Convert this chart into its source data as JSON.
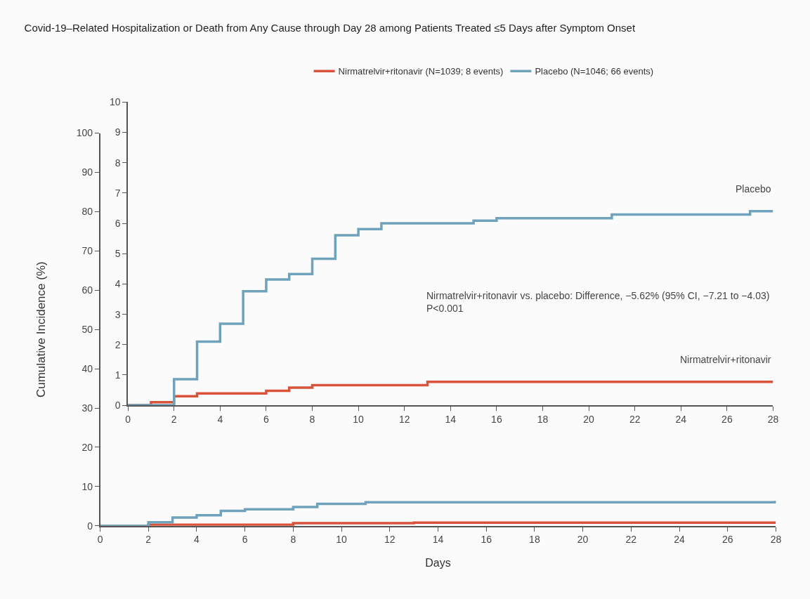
{
  "chart_data": [
    {
      "type": "step",
      "title": "Covid-19–Related Hospitalization or Death from Any Cause through Day 28 among Patients Treated ≤5 Days after Symptom Onset",
      "legend": "top",
      "marker": "none",
      "line_style": "solid",
      "xlim": [
        0,
        28
      ],
      "xticks": [
        0,
        2,
        4,
        6,
        8,
        10,
        12,
        14,
        16,
        18,
        20,
        22,
        24,
        26,
        28
      ],
      "ylim": [
        0,
        10
      ],
      "yticks": [
        0,
        1,
        2,
        3,
        4,
        5,
        6,
        7,
        8,
        9,
        10
      ],
      "series": [
        {
          "name": "Nirmatrelvir+ritonavir (N=1039; 8 events)",
          "color": "#d9533b",
          "x": [
            0,
            1,
            2,
            3,
            6,
            7,
            8,
            13,
            28
          ],
          "values": [
            0,
            0.1,
            0.3,
            0.39,
            0.48,
            0.58,
            0.66,
            0.77,
            0.77
          ]
        },
        {
          "name": "Placebo (N=1046; 66 events)",
          "color": "#6fa3bc",
          "x": [
            0,
            2,
            3,
            4,
            5,
            6,
            7,
            8,
            9,
            10,
            11,
            15,
            16,
            21,
            27,
            28
          ],
          "values": [
            0,
            0.86,
            2.1,
            2.69,
            3.76,
            4.15,
            4.33,
            4.83,
            5.61,
            5.81,
            6.0,
            6.09,
            6.17,
            6.29,
            6.4,
            6.4
          ]
        }
      ],
      "annotations": [
        "Nirmatrelvir+ritonavir",
        "Placebo",
        "Nirmatrelvir+ritonavir vs. placebo: Difference, −5.62% (95% CI, −7.21 to −4.03)\nP<0.001"
      ]
    },
    {
      "type": "step",
      "xlabel": "Days",
      "ylabel": "Cumulative Incidence (%)",
      "legend": false,
      "marker": "none",
      "line_style": "solid",
      "xlim": [
        0,
        28
      ],
      "xticks": [
        0,
        2,
        4,
        6,
        8,
        10,
        12,
        14,
        16,
        18,
        20,
        22,
        24,
        26,
        28
      ],
      "ylim": [
        0,
        100
      ],
      "yticks": [
        0,
        10,
        20,
        30,
        40,
        50,
        60,
        70,
        80,
        90,
        100
      ],
      "series": [
        {
          "color": "#d9533b",
          "x": [
            0,
            2,
            8,
            13,
            28
          ],
          "values": [
            0,
            0.3,
            0.7,
            0.8,
            0.8
          ]
        },
        {
          "color": "#6fa3bc",
          "x": [
            0,
            2,
            3,
            4,
            5,
            6,
            8,
            9,
            11,
            28
          ],
          "values": [
            0,
            0.9,
            2.1,
            2.7,
            3.8,
            4.2,
            4.8,
            5.6,
            6.0,
            6.4
          ]
        }
      ]
    }
  ]
}
